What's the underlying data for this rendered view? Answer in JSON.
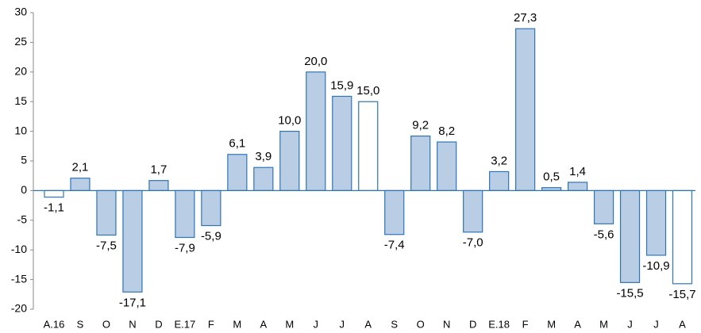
{
  "chart_data": {
    "type": "bar",
    "categories": [
      "A.16",
      "S",
      "O",
      "N",
      "D",
      "E.17",
      "F",
      "M",
      "A",
      "M",
      "J",
      "J",
      "A",
      "S",
      "O",
      "N",
      "D",
      "E.18",
      "F",
      "M",
      "A",
      "M",
      "J",
      "J",
      "A"
    ],
    "values": [
      -1.1,
      2.1,
      -7.5,
      -17.1,
      1.7,
      -7.9,
      -5.9,
      6.1,
      3.9,
      10.0,
      20.0,
      15.9,
      15.0,
      -7.4,
      9.2,
      8.2,
      -7.0,
      3.2,
      27.3,
      0.5,
      1.4,
      -5.6,
      -15.5,
      -10.9,
      -15.7
    ],
    "value_labels": [
      "-1,1",
      "2,1",
      "-7,5",
      "-17,1",
      "1,7",
      "-7,9",
      "-5,9",
      "6,1",
      "3,9",
      "10,0",
      "20,0",
      "15,9",
      "15,0",
      "-7,4",
      "9,2",
      "8,2",
      "-7,0",
      "3,2",
      "27,3",
      "0,5",
      "1,4",
      "-5,6",
      "-15,5",
      "-10,9",
      "-15,7"
    ],
    "colors": [
      "#ffffff",
      "#b9cde5",
      "#b9cde5",
      "#b9cde5",
      "#b9cde5",
      "#b9cde5",
      "#b9cde5",
      "#b9cde5",
      "#b9cde5",
      "#b9cde5",
      "#b9cde5",
      "#b9cde5",
      "#ffffff",
      "#b9cde5",
      "#b9cde5",
      "#b9cde5",
      "#b9cde5",
      "#b9cde5",
      "#b9cde5",
      "#b9cde5",
      "#b9cde5",
      "#b9cde5",
      "#b9cde5",
      "#b9cde5",
      "#ffffff"
    ],
    "edge_color": "#2e75b6",
    "ylim": [
      -20,
      30
    ],
    "yticks": [
      -20,
      -15,
      -10,
      -5,
      0,
      5,
      10,
      15,
      20,
      25,
      30
    ],
    "grid": false
  }
}
